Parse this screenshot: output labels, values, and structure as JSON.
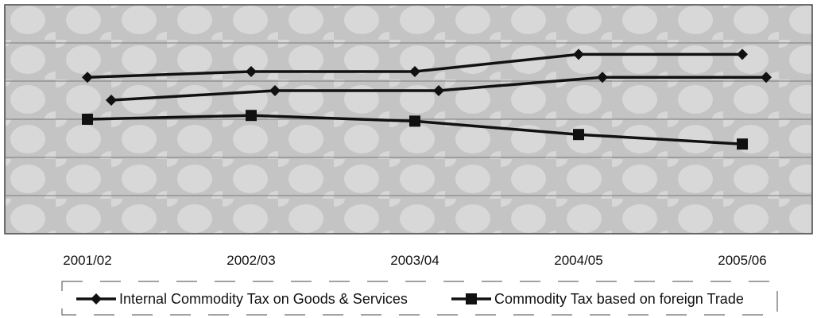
{
  "chart_data": {
    "type": "line",
    "categories": [
      "2001/02",
      "2002/03",
      "2003/04",
      "2004/05",
      "2005/06"
    ],
    "ylim": [
      0,
      6
    ],
    "grid": true,
    "legend_position": "bottom",
    "series": [
      {
        "name": "Internal Commodity Tax on Goods & Services",
        "marker": "diamond",
        "values": [
          4.1,
          4.25,
          4.25,
          4.7,
          4.7
        ]
      },
      {
        "name": "",
        "marker": "diamond",
        "values": [
          3.5,
          3.75,
          3.75,
          4.1,
          4.1
        ]
      },
      {
        "name": "Commodity Tax based on foreign Trade",
        "marker": "square",
        "values": [
          3.0,
          3.1,
          2.95,
          2.6,
          2.35
        ]
      }
    ],
    "colors": {
      "line": "#111111",
      "plot_bg": "#c9c9c9",
      "grid": "#7a7a7a"
    }
  },
  "legend": {
    "items": [
      {
        "label": "Internal Commodity Tax on Goods & Services",
        "marker": "diamond"
      },
      {
        "label": "Commodity Tax based on foreign Trade",
        "marker": "square"
      }
    ]
  }
}
